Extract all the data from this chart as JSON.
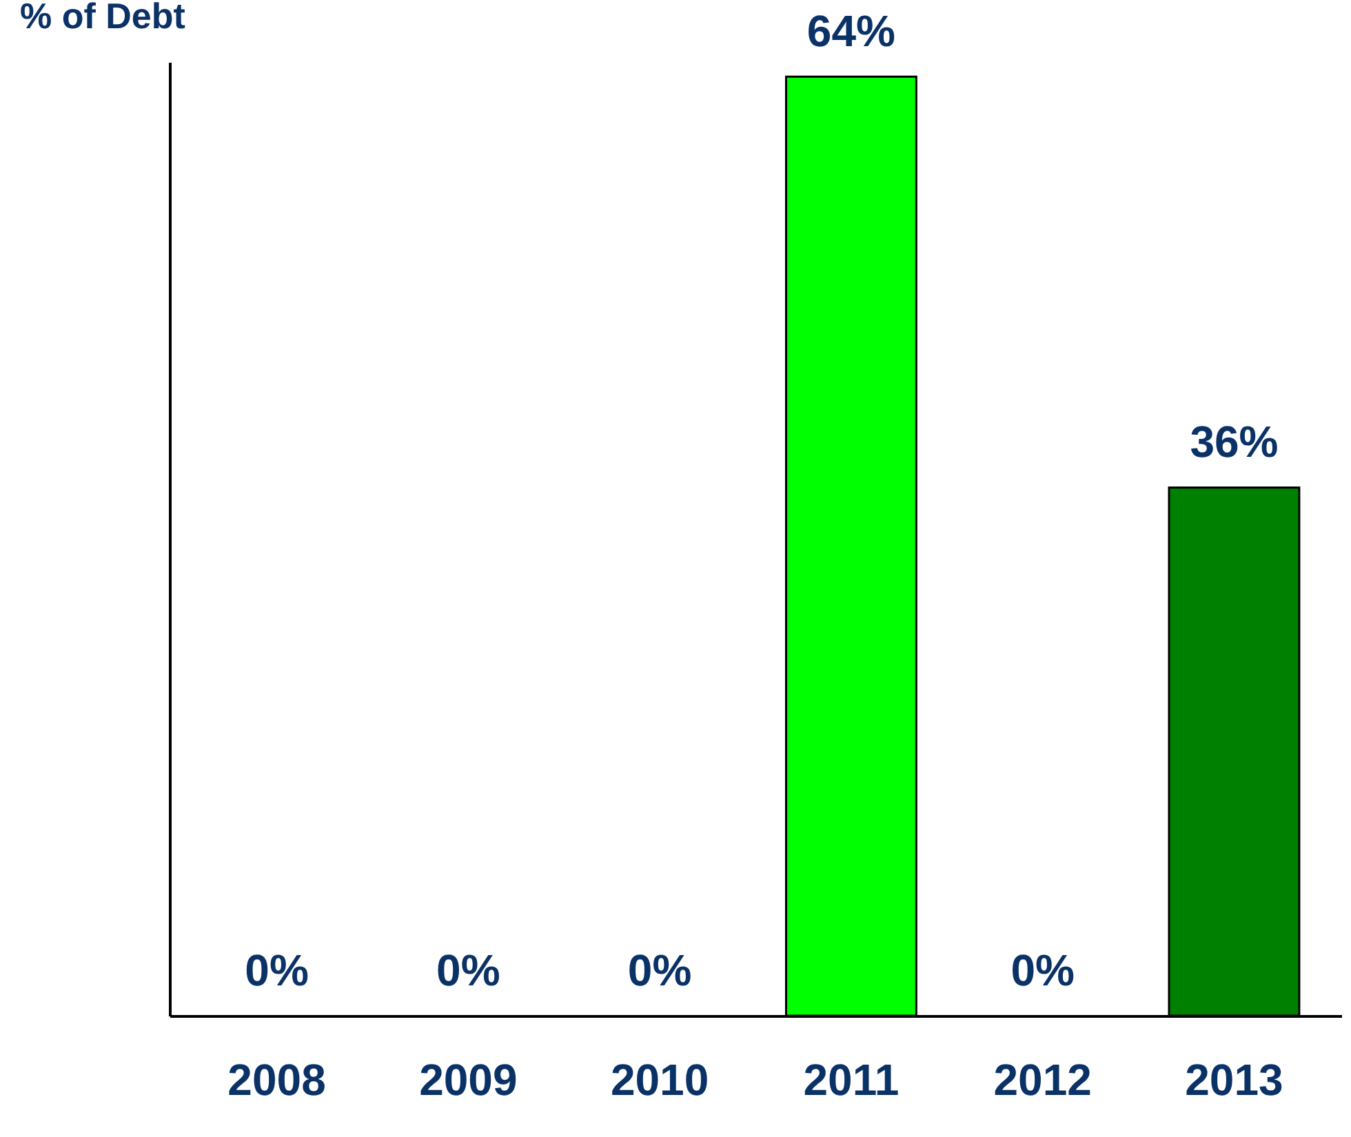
{
  "chart_data": {
    "type": "bar",
    "ylabel": "% of Debt",
    "categories": [
      "2008",
      "2009",
      "2010",
      "2011",
      "2012",
      "2013"
    ],
    "values": [
      0,
      0,
      0,
      64,
      0,
      36
    ],
    "colors": [
      "#00ff00",
      "#00ff00",
      "#00ff00",
      "#00ff00",
      "#008000",
      "#008000"
    ],
    "value_labels": [
      "0%",
      "0%",
      "0%",
      "64%",
      "0%",
      "36%"
    ],
    "tick_labels": "x",
    "grid": false
  }
}
